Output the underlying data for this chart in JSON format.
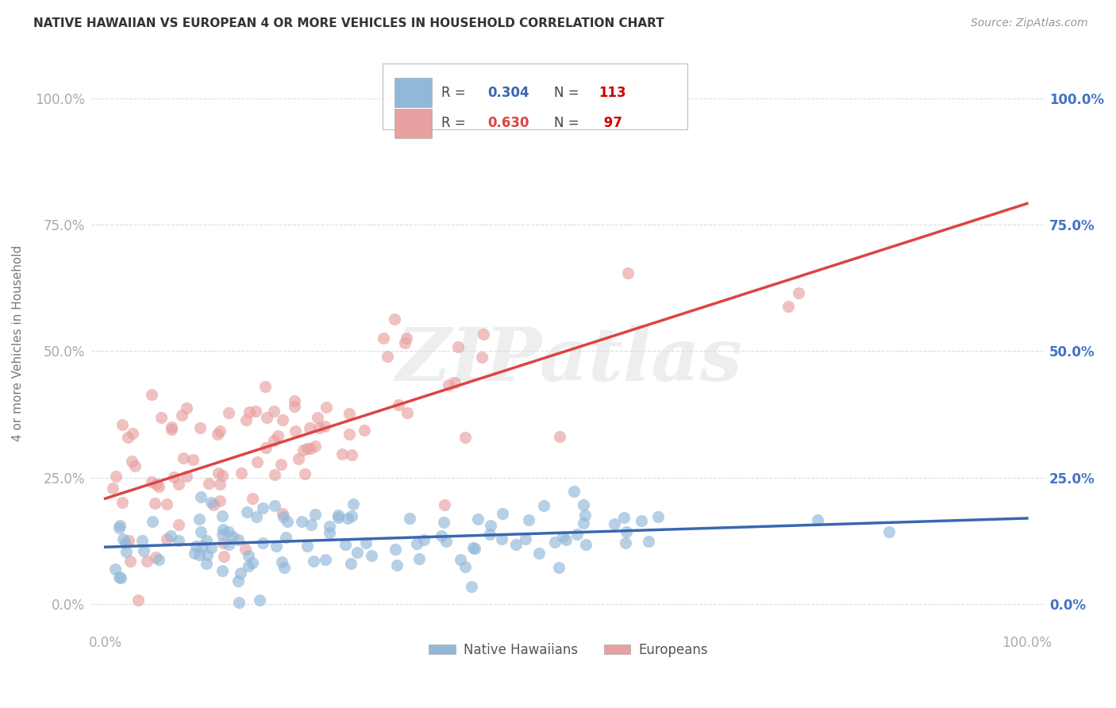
{
  "title": "NATIVE HAWAIIAN VS EUROPEAN 4 OR MORE VEHICLES IN HOUSEHOLD CORRELATION CHART",
  "source": "Source: ZipAtlas.com",
  "ylabel": "4 or more Vehicles in Household",
  "x_tick_labels": [
    "0.0%",
    "100.0%"
  ],
  "y_tick_labels": [
    "0.0%",
    "25.0%",
    "50.0%",
    "75.0%",
    "100.0%"
  ],
  "y_tick_positions": [
    0.0,
    0.25,
    0.5,
    0.75,
    1.0
  ],
  "watermark": "ZIPatlas",
  "blue_color": "#92b8d8",
  "pink_color": "#e8a0a0",
  "blue_line_color": "#3a67b0",
  "pink_line_color": "#d44",
  "title_color": "#333333",
  "source_color": "#999999",
  "axis_label_color": "#777777",
  "left_tick_color": "#aaaaaa",
  "right_tick_color": "#4472c4",
  "grid_color": "#dddddd",
  "background_color": "#ffffff",
  "legend_r_color": "#555555",
  "legend_blue_val_color": "#3a67b0",
  "legend_pink_val_color": "#d44",
  "legend_n_color": "#cc0000"
}
